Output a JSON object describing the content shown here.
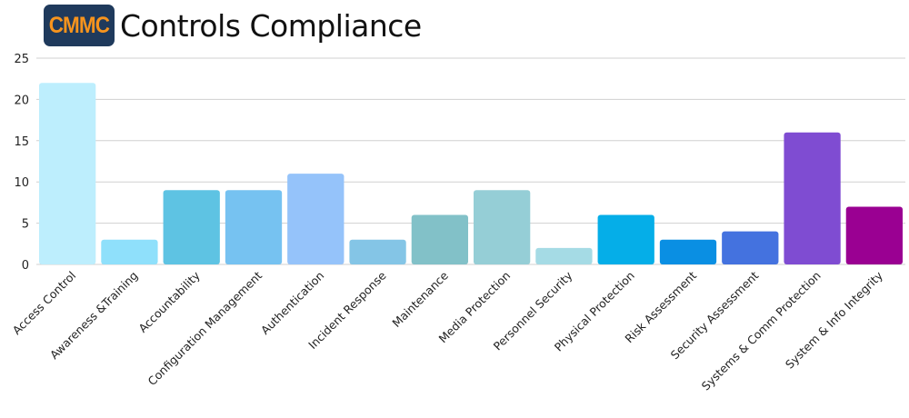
{
  "header": {
    "logo_text": "CMMC",
    "title": "Controls Compliance"
  },
  "colors": {
    "logo_bg": "#1f3a5c",
    "logo_text": "#f7941d",
    "grid": "#d0d0d0"
  },
  "chart_data": {
    "type": "bar",
    "title": "Controls Compliance",
    "xlabel": "",
    "ylabel": "",
    "ylim": [
      0,
      25
    ],
    "yticks": [
      0,
      5,
      10,
      15,
      20,
      25
    ],
    "grid": true,
    "legend": "none",
    "categories": [
      "Access Control",
      "Awareness &Training",
      "Accountability",
      "Configuration Management",
      "Authentication",
      "Incident Response",
      "Maintenance",
      "Media Protection",
      "Personnel Security",
      "Physical Protection",
      "Risk Assessment",
      "Security Assessment",
      "Systems & Comm Protection",
      "System & Info Integrity"
    ],
    "values": [
      22,
      3,
      9,
      9,
      11,
      3,
      6,
      9,
      2,
      6,
      3,
      4,
      16,
      7
    ],
    "bar_colors": [
      "#bdeefd",
      "#8fe0fb",
      "#5ec3e3",
      "#76c2f1",
      "#95c3fa",
      "#84c5e6",
      "#82c1c8",
      "#95ced6",
      "#a5dbe5",
      "#05aee8",
      "#0a8fe3",
      "#4472df",
      "#7f4cd2",
      "#9a0092"
    ]
  }
}
